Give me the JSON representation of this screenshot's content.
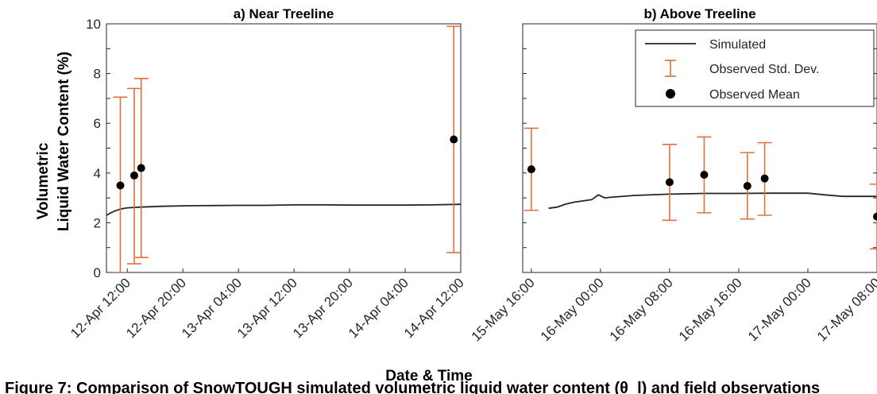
{
  "figure": {
    "ylabel_line1": "Volumetric",
    "ylabel_line2": "Liquid Water Content (%)",
    "xlabel": "Date & Time",
    "caption": "Figure 7: Comparison of SnowTOUGH simulated volumetric liquid water content (θ_l) and field observations"
  },
  "chart_data": [
    {
      "type": "line",
      "title": "a) Near Treeline",
      "xlabel": "Date & Time",
      "ylabel": "Volumetric Liquid Water Content (%)",
      "ylim": [
        0,
        10
      ],
      "yticks": [
        0,
        2,
        4,
        6,
        8,
        10
      ],
      "xlim": [
        "2019-04-12 09:00",
        "2019-04-14 12:00"
      ],
      "xticks": [
        "12-Apr 12:00",
        "12-Apr 20:00",
        "13-Apr 04:00",
        "13-Apr 12:00",
        "13-Apr 20:00",
        "14-Apr 04:00",
        "14-Apr 12:00"
      ],
      "grid": false,
      "series": [
        {
          "name": "Simulated",
          "kind": "line",
          "color": "#262626",
          "x": [
            "2019-04-12 09:00",
            "2019-04-12 10:00",
            "2019-04-12 11:00",
            "2019-04-12 12:00",
            "2019-04-12 14:00",
            "2019-04-12 17:00",
            "2019-04-12 20:00",
            "2019-04-13 00:00",
            "2019-04-13 04:00",
            "2019-04-13 08:00",
            "2019-04-13 12:00",
            "2019-04-13 16:00",
            "2019-04-13 20:00",
            "2019-04-14 00:00",
            "2019-04-14 04:00",
            "2019-04-14 08:00",
            "2019-04-14 12:00"
          ],
          "y": [
            2.3,
            2.45,
            2.55,
            2.6,
            2.63,
            2.66,
            2.68,
            2.69,
            2.7,
            2.7,
            2.72,
            2.72,
            2.71,
            2.71,
            2.71,
            2.72,
            2.74
          ]
        },
        {
          "name": "Observed Mean",
          "kind": "scatter",
          "color": "#000000",
          "x": [
            "2019-04-12 11:00",
            "2019-04-12 13:00",
            "2019-04-12 14:00",
            "2019-04-14 11:00"
          ],
          "y": [
            3.5,
            3.9,
            4.2,
            5.35
          ]
        },
        {
          "name": "Observed Std. Dev.",
          "kind": "errorbar",
          "color": "#e0703c",
          "x": [
            "2019-04-12 11:00",
            "2019-04-12 13:00",
            "2019-04-12 14:00",
            "2019-04-14 11:00"
          ],
          "low": [
            0.0,
            0.35,
            0.6,
            0.8
          ],
          "high": [
            7.05,
            7.4,
            7.8,
            9.9
          ]
        }
      ]
    },
    {
      "type": "line",
      "title": "b) Above Treeline",
      "xlabel": "Date & Time",
      "ylabel": "",
      "ylim": [
        0,
        10
      ],
      "xlim": [
        "2019-05-15 15:00",
        "2019-05-17 08:00"
      ],
      "xticks": [
        "15-May 16:00",
        "16-May 00:00",
        "16-May 08:00",
        "16-May 16:00",
        "17-May 00:00",
        "17-May 08:00"
      ],
      "grid": false,
      "legend": {
        "position": "top-right",
        "entries": [
          "Simulated",
          "Observed Std. Dev.",
          "Observed Mean"
        ]
      },
      "series": [
        {
          "name": "Simulated",
          "kind": "line",
          "color": "#262626",
          "x": [
            "2019-05-15 18:00",
            "2019-05-15 19:00",
            "2019-05-15 20:00",
            "2019-05-15 21:00",
            "2019-05-15 22:00",
            "2019-05-15 23:00",
            "2019-05-15 23:45",
            "2019-05-16 00:30",
            "2019-05-16 01:00",
            "2019-05-16 04:00",
            "2019-05-16 08:00",
            "2019-05-16 12:00",
            "2019-05-16 16:00",
            "2019-05-16 20:00",
            "2019-05-17 00:00",
            "2019-05-17 02:00",
            "2019-05-17 04:00",
            "2019-05-17 08:00"
          ],
          "y": [
            2.58,
            2.63,
            2.75,
            2.83,
            2.88,
            2.93,
            3.12,
            3.0,
            3.02,
            3.1,
            3.15,
            3.18,
            3.18,
            3.19,
            3.19,
            3.12,
            3.06,
            3.06
          ]
        },
        {
          "name": "Observed Mean",
          "kind": "scatter",
          "color": "#000000",
          "x": [
            "2019-05-15 16:00",
            "2019-05-16 08:00",
            "2019-05-16 12:00",
            "2019-05-16 17:00",
            "2019-05-16 19:00",
            "2019-05-17 08:00"
          ],
          "y": [
            4.15,
            3.63,
            3.93,
            3.48,
            3.78,
            2.25
          ]
        },
        {
          "name": "Observed Std. Dev.",
          "kind": "errorbar",
          "color": "#e0703c",
          "x": [
            "2019-05-15 16:00",
            "2019-05-16 08:00",
            "2019-05-16 12:00",
            "2019-05-16 17:00",
            "2019-05-16 19:00",
            "2019-05-17 08:00"
          ],
          "low": [
            2.5,
            2.1,
            2.4,
            2.15,
            2.3,
            0.95
          ],
          "high": [
            5.8,
            5.15,
            5.45,
            4.82,
            5.22,
            3.55
          ]
        }
      ]
    }
  ]
}
